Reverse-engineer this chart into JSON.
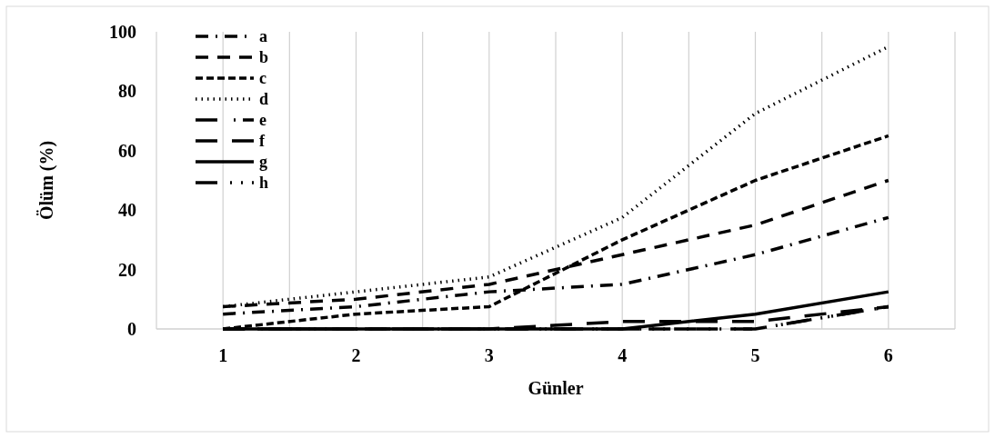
{
  "chart_data": {
    "type": "line",
    "xlabel": "Günler",
    "ylabel": "Ölüm (%)",
    "x": [
      1,
      2,
      3,
      4,
      5,
      6
    ],
    "xlim": [
      0.5,
      6.5
    ],
    "xticks": [
      {
        "value": 0.5,
        "label": null
      },
      1,
      {
        "value": 1.5,
        "label": null
      },
      2,
      {
        "value": 2.5,
        "label": null
      },
      3,
      {
        "value": 3.5,
        "label": null
      },
      4,
      {
        "value": 4.5,
        "label": null
      },
      5,
      {
        "value": 5.5,
        "label": null
      },
      6,
      {
        "value": 6.5,
        "label": null
      }
    ],
    "ylim": [
      0,
      100
    ],
    "yticks": [
      0,
      20,
      40,
      60,
      80,
      100
    ],
    "grid": "x",
    "legend": "top left",
    "series": [
      {
        "name": "a",
        "color": "#000000",
        "line_style": "dashdot",
        "values": [
          5,
          7.5,
          12.5,
          15,
          25,
          37.5
        ]
      },
      {
        "name": "b",
        "color": "#000000",
        "line_style": "longdash",
        "values": [
          7.5,
          10,
          15,
          25,
          35,
          50
        ]
      },
      {
        "name": "c",
        "color": "#000000",
        "line_style": "dashed",
        "values": [
          0,
          5,
          7.5,
          30,
          50,
          65
        ]
      },
      {
        "name": "d",
        "color": "#000000",
        "line_style": "dotted",
        "values": [
          7.5,
          12.5,
          17.5,
          37.5,
          72.5,
          95
        ]
      },
      {
        "name": "e",
        "color": "#000000",
        "line_style": "longdashdot",
        "values": [
          0,
          0,
          0,
          0,
          0,
          7.5
        ]
      },
      {
        "name": "f",
        "color": "#000000",
        "line_style": "longlongdash",
        "values": [
          0,
          0,
          0,
          2.5,
          2.5,
          7.5
        ]
      },
      {
        "name": "g",
        "color": "#000000",
        "line_style": "solid",
        "values": [
          0,
          0,
          0,
          0,
          5,
          12.5
        ]
      },
      {
        "name": "h",
        "color": "#000000",
        "line_style": "longdashdotdot",
        "values": [
          0,
          0,
          0,
          0,
          0,
          7.5
        ]
      }
    ]
  }
}
